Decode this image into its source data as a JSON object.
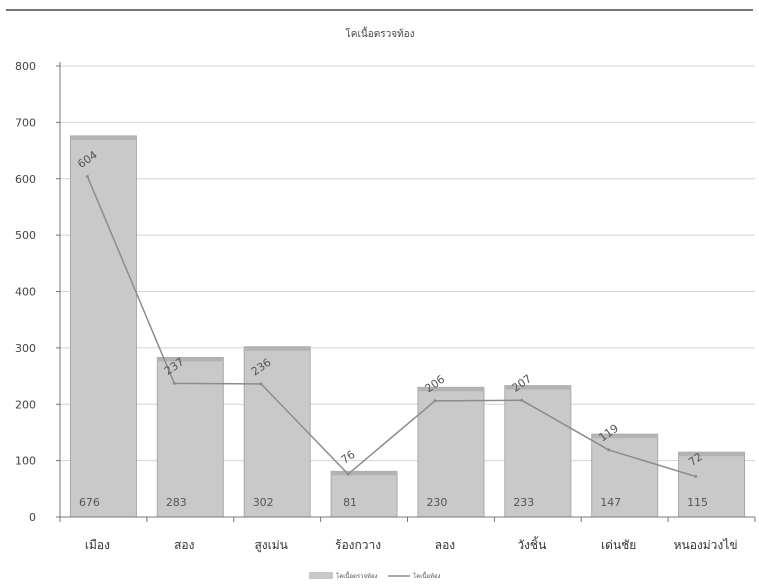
{
  "chart_data": {
    "type": "bar",
    "title": "โคเนื้อตรวจท้อง",
    "categories": [
      "เมือง",
      "สอง",
      "สูงเม่น",
      "ร้องกวาง",
      "ลอง",
      "วังชิ้น",
      "เด่นชัย",
      "หนองม่วงไข่"
    ],
    "series": [
      {
        "name": "โคเนื้อตรวจท้อง",
        "kind": "bar",
        "values": [
          676,
          283,
          302,
          81,
          230,
          233,
          147,
          115
        ]
      },
      {
        "name": "โคเนื้อท้อง",
        "kind": "line",
        "values": [
          604,
          237,
          236,
          76,
          206,
          207,
          119,
          72
        ]
      }
    ],
    "ylim": [
      0,
      800
    ],
    "yticks": [
      0,
      100,
      200,
      300,
      400,
      500,
      600,
      700,
      800
    ],
    "grid": true,
    "legend_position": "bottom",
    "colors": {
      "bar": "#c9c9c9",
      "bar_edge": "#a9a9a9",
      "line": "#8c8c8c",
      "grid": "#d4d4d4",
      "axis": "#777777",
      "frame": "#777777"
    }
  }
}
